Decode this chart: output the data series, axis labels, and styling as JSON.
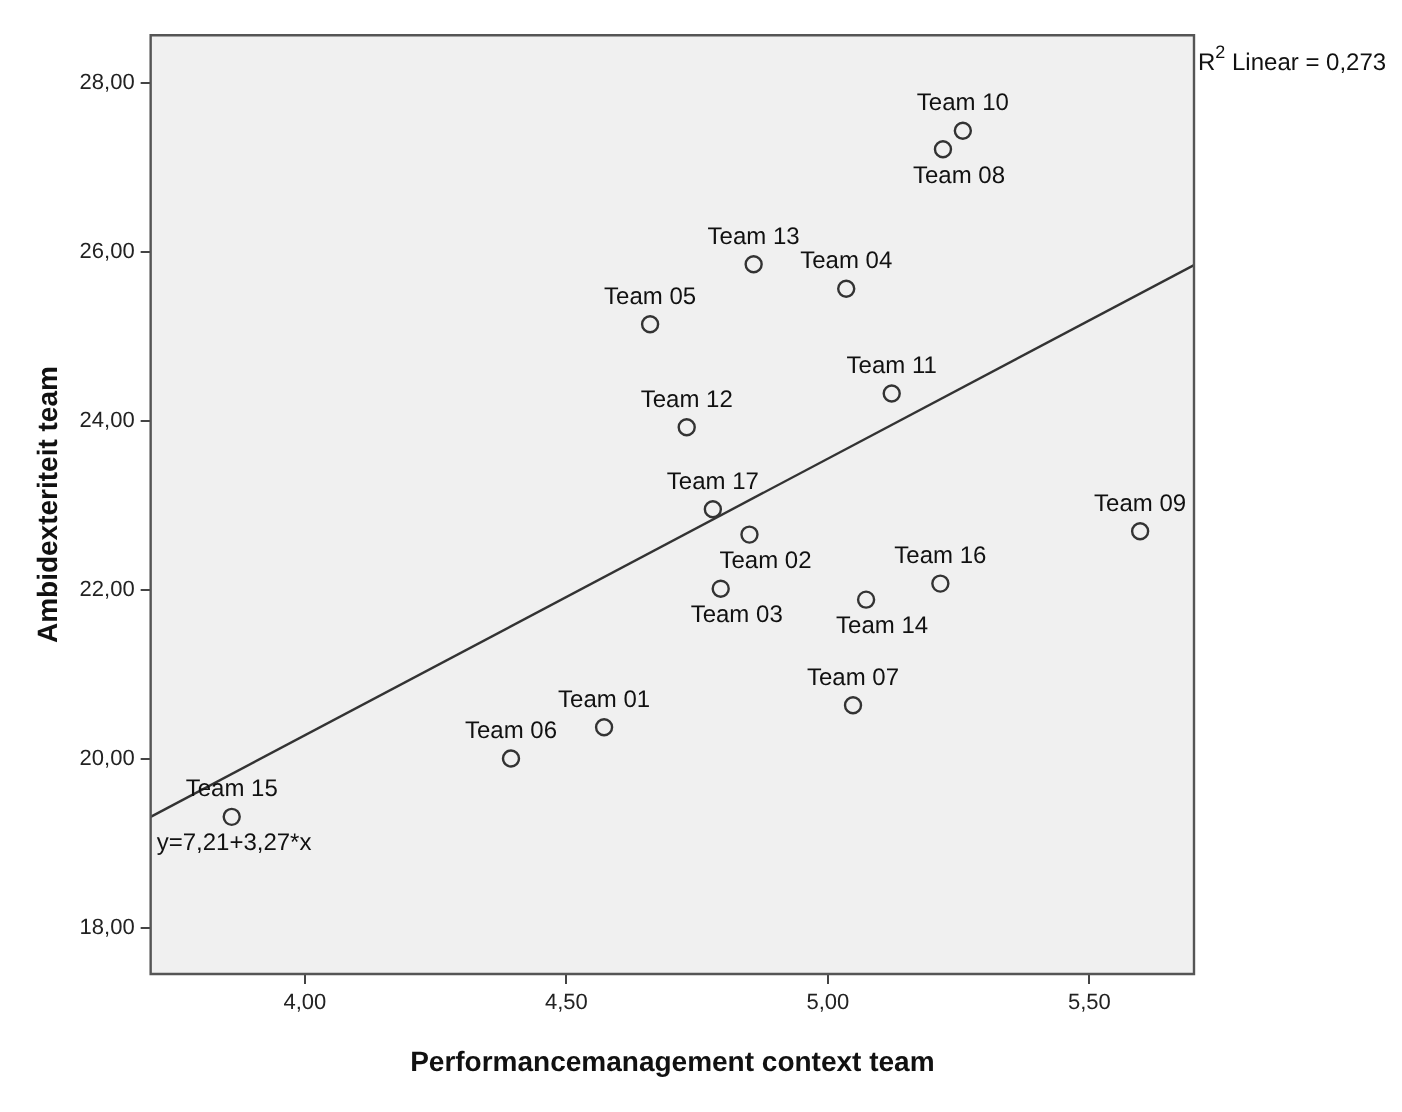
{
  "chart_data": {
    "type": "scatter",
    "xlabel": "Performancemanagement context team",
    "ylabel": "Ambidexteriteit team",
    "xlim": [
      3.705,
      5.7
    ],
    "ylim": [
      17.46,
      28.57
    ],
    "xticks": [
      {
        "value": 4,
        "label": "4,00"
      },
      {
        "value": 4.5,
        "label": "4,50"
      },
      {
        "value": 5,
        "label": "5,00"
      },
      {
        "value": 5.5,
        "label": "5,50"
      }
    ],
    "yticks": [
      {
        "value": 18,
        "label": "18,00"
      },
      {
        "value": 20,
        "label": "20,00"
      },
      {
        "value": 22,
        "label": "22,00"
      },
      {
        "value": 24,
        "label": "24,00"
      },
      {
        "value": 26,
        "label": "26,00"
      },
      {
        "value": 28,
        "label": "28,00"
      }
    ],
    "legend": false,
    "marker": "circle",
    "series": [
      {
        "color": "#333333",
        "x": [
          5.258,
          5.22,
          4.858,
          5.035,
          4.66,
          5.122,
          4.73,
          4.78,
          4.85,
          5.597,
          4.795,
          5.215,
          5.073,
          5.048,
          4.572,
          4.394,
          3.86
        ],
        "values": [
          27.44,
          27.22,
          25.86,
          25.57,
          25.15,
          24.33,
          23.93,
          22.96,
          22.66,
          22.7,
          22.02,
          22.08,
          21.89,
          20.64,
          20.38,
          20.01,
          19.32
        ]
      },
      {
        "type": "line",
        "color": "#333333",
        "marker": "none",
        "line_style": "solid",
        "x": [
          3.705,
          5.7
        ],
        "values": [
          19.32,
          25.85
        ]
      }
    ],
    "annotations": [
      {
        "text": "Team 10",
        "x": 5.258,
        "y": 27.44
      },
      {
        "text": "Team 08",
        "x": 5.22,
        "y": 27.22
      },
      {
        "text": "Team 13",
        "x": 4.858,
        "y": 25.86
      },
      {
        "text": "Team 04",
        "x": 5.035,
        "y": 25.57
      },
      {
        "text": "Team 05",
        "x": 4.66,
        "y": 25.15
      },
      {
        "text": "Team 11",
        "x": 5.122,
        "y": 24.33
      },
      {
        "text": "Team 12",
        "x": 4.73,
        "y": 23.93
      },
      {
        "text": "Team 17",
        "x": 4.78,
        "y": 22.96
      },
      {
        "text": "Team 02",
        "x": 4.85,
        "y": 22.66
      },
      {
        "text": "Team 09",
        "x": 5.597,
        "y": 22.7
      },
      {
        "text": "Team 03",
        "x": 4.795,
        "y": 22.02
      },
      {
        "text": "Team 16",
        "x": 5.215,
        "y": 22.08
      },
      {
        "text": "Team 14",
        "x": 5.073,
        "y": 21.89
      },
      {
        "text": "Team 07",
        "x": 5.048,
        "y": 20.64
      },
      {
        "text": "Team 01",
        "x": 4.572,
        "y": 20.38
      },
      {
        "text": "Team 06",
        "x": 4.394,
        "y": 20.01
      },
      {
        "text": "Team 15",
        "x": 3.86,
        "y": 19.32
      },
      {
        "text": "y=7,21+3,27*x",
        "x": 3.705,
        "y": 19.32
      },
      "R$^{2}$ Linear = 0,273"
    ]
  }
}
